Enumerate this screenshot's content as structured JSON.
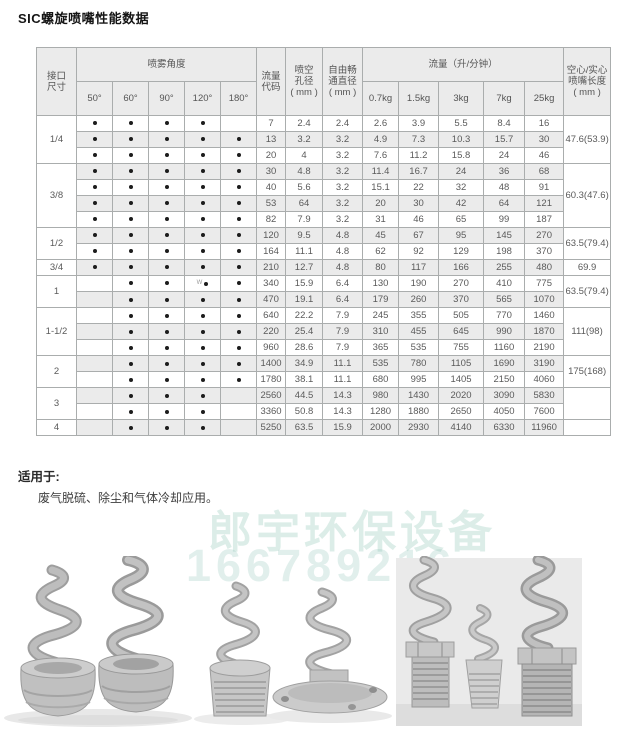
{
  "page": {
    "title": "SIC螺旋喷嘴性能数据",
    "suitable_heading": "适用于:",
    "suitable_text": "废气脱硫、除尘和气体冷却应用。",
    "watermark": {
      "line1": "郎宇环保设备",
      "line2": "166789216",
      "color": "#bcded6"
    }
  },
  "table": {
    "headers": {
      "interface_size": "接口\n尺寸",
      "spray_angle": "喷雾角度",
      "angles": [
        "50°",
        "60°",
        "90°",
        "120°",
        "180°"
      ],
      "flow_code": "流量\n代码",
      "orifice": "喷空\n孔径\n( mm )",
      "free_passage": "自由畅\n通直径\n( mm )",
      "flow_rate": "流量（升/分钟）",
      "pressures": [
        "0.7kg",
        "1.5kg",
        "3kg",
        "7kg",
        "25kg"
      ],
      "length": "空心/实心\n喷嘴长度\n( mm )"
    },
    "groups": [
      {
        "size": "1/4",
        "length": "47.6(53.9)",
        "rows": [
          {
            "angles": [
              1,
              1,
              1,
              1,
              0
            ],
            "code": "7",
            "orifice": "2.4",
            "free": "2.4",
            "flows": [
              "2.6",
              "3.9",
              "5.5",
              "8.4",
              "16"
            ]
          },
          {
            "angles": [
              1,
              1,
              1,
              1,
              1
            ],
            "code": "13",
            "orifice": "3.2",
            "free": "3.2",
            "flows": [
              "4.9",
              "7.3",
              "10.3",
              "15.7",
              "30"
            ]
          },
          {
            "angles": [
              1,
              1,
              1,
              1,
              1
            ],
            "code": "20",
            "orifice": "4",
            "free": "3.2",
            "flows": [
              "7.6",
              "11.2",
              "15.8",
              "24",
              "46"
            ]
          }
        ]
      },
      {
        "size": "3/8",
        "length": "60.3(47.6)",
        "rows": [
          {
            "angles": [
              1,
              1,
              1,
              1,
              1
            ],
            "code": "30",
            "orifice": "4.8",
            "free": "3.2",
            "flows": [
              "11.4",
              "16.7",
              "24",
              "36",
              "68"
            ]
          },
          {
            "angles": [
              1,
              1,
              1,
              1,
              1
            ],
            "code": "40",
            "orifice": "5.6",
            "free": "3.2",
            "flows": [
              "15.1",
              "22",
              "32",
              "48",
              "91"
            ]
          },
          {
            "angles": [
              1,
              1,
              1,
              1,
              1
            ],
            "code": "53",
            "orifice": "64",
            "free": "3.2",
            "flows": [
              "20",
              "30",
              "42",
              "64",
              "121"
            ]
          },
          {
            "angles": [
              1,
              1,
              1,
              1,
              1
            ],
            "code": "82",
            "orifice": "7.9",
            "free": "3.2",
            "flows": [
              "31",
              "46",
              "65",
              "99",
              "187"
            ]
          }
        ]
      },
      {
        "size": "1/2",
        "length": "63.5(79.4)",
        "rows": [
          {
            "angles": [
              1,
              1,
              1,
              1,
              1
            ],
            "code": "120",
            "orifice": "9.5",
            "free": "4.8",
            "flows": [
              "45",
              "67",
              "95",
              "145",
              "270"
            ]
          },
          {
            "angles": [
              1,
              1,
              1,
              1,
              1
            ],
            "code": "164",
            "orifice": "11.1",
            "free": "4.8",
            "flows": [
              "62",
              "92",
              "129",
              "198",
              "370"
            ]
          }
        ]
      },
      {
        "size": "3/4",
        "length": "69.9",
        "rows": [
          {
            "angles": [
              1,
              1,
              1,
              1,
              1
            ],
            "code": "210",
            "orifice": "12.7",
            "free": "4.8",
            "flows": [
              "80",
              "117",
              "166",
              "255",
              "480"
            ]
          }
        ]
      },
      {
        "size": "1",
        "length": "63.5(79.4)",
        "rows": [
          {
            "angles": [
              0,
              1,
              1,
              1,
              1
            ],
            "code": "340",
            "orifice": "15.9",
            "free": "6.4",
            "flows": [
              "130",
              "190",
              "270",
              "410",
              "775"
            ],
            "mark_col": 3,
            "mark": "W"
          },
          {
            "angles": [
              0,
              1,
              1,
              1,
              1
            ],
            "code": "470",
            "orifice": "19.1",
            "free": "6.4",
            "flows": [
              "179",
              "260",
              "370",
              "565",
              "1070"
            ]
          }
        ]
      },
      {
        "size": "1-1/2",
        "length": "111(98)",
        "rows": [
          {
            "angles": [
              0,
              1,
              1,
              1,
              1
            ],
            "code": "640",
            "orifice": "22.2",
            "free": "7.9",
            "flows": [
              "245",
              "355",
              "505",
              "770",
              "1460"
            ]
          },
          {
            "angles": [
              0,
              1,
              1,
              1,
              1
            ],
            "code": "220",
            "orifice": "25.4",
            "free": "7.9",
            "flows": [
              "310",
              "455",
              "645",
              "990",
              "1870"
            ]
          },
          {
            "angles": [
              0,
              1,
              1,
              1,
              1
            ],
            "code": "960",
            "orifice": "28.6",
            "free": "7.9",
            "flows": [
              "365",
              "535",
              "755",
              "1160",
              "2190"
            ]
          }
        ]
      },
      {
        "size": "2",
        "length": "175(168)",
        "rows": [
          {
            "angles": [
              0,
              1,
              1,
              1,
              1
            ],
            "code": "1400",
            "orifice": "34.9",
            "free": "11.1",
            "flows": [
              "535",
              "780",
              "1105",
              "1690",
              "3190"
            ]
          },
          {
            "angles": [
              0,
              1,
              1,
              1,
              1
            ],
            "code": "1780",
            "orifice": "38.1",
            "free": "11.1",
            "flows": [
              "680",
              "995",
              "1405",
              "2150",
              "4060"
            ]
          }
        ]
      },
      {
        "size": "3",
        "length": "",
        "rows": [
          {
            "angles": [
              0,
              1,
              1,
              1,
              0
            ],
            "code": "2560",
            "orifice": "44.5",
            "free": "14.3",
            "flows": [
              "980",
              "1430",
              "2020",
              "3090",
              "5830"
            ]
          },
          {
            "angles": [
              0,
              1,
              1,
              1,
              0
            ],
            "code": "3360",
            "orifice": "50.8",
            "free": "14.3",
            "flows": [
              "1280",
              "1880",
              "2650",
              "4050",
              "7600"
            ]
          }
        ]
      },
      {
        "size": "4",
        "length": "",
        "rows": [
          {
            "angles": [
              0,
              1,
              1,
              1,
              0
            ],
            "code": "5250",
            "orifice": "63.5",
            "free": "15.9",
            "flows": [
              "2000",
              "2930",
              "4140",
              "6330",
              "11960"
            ]
          }
        ]
      }
    ]
  }
}
